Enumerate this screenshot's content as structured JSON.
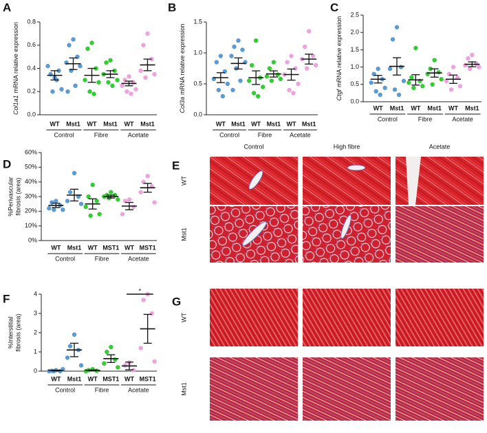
{
  "chart_data": [
    {
      "type": "dot",
      "panel": "A",
      "ylabel_gene": "Col1a1",
      "ylabel": "mRNA relative expression",
      "categories": [
        "WT",
        "Mst1",
        "WT",
        "Mst1",
        "WT",
        "Mst1"
      ],
      "groups": [
        "Control",
        "Fibre",
        "Acetate"
      ],
      "colors": [
        "#5b9bd5",
        "#5b9bd5",
        "#33cc33",
        "#33cc33",
        "#eea3de",
        "#eea3de"
      ],
      "points": [
        [
          0.32,
          0.35,
          0.38,
          0.42,
          0.22,
          0.2,
          0.3
        ],
        [
          0.65,
          0.6,
          0.5,
          0.45,
          0.42,
          0.38,
          0.25,
          0.2
        ],
        [
          0.62,
          0.57,
          0.4,
          0.3,
          0.28,
          0.2,
          0.18
        ],
        [
          0.47,
          0.45,
          0.38,
          0.35,
          0.3,
          0.28,
          0.25
        ],
        [
          0.33,
          0.3,
          0.28,
          0.25,
          0.22,
          0.2,
          0.18
        ],
        [
          0.7,
          0.6,
          0.48,
          0.38,
          0.35,
          0.32
        ]
      ],
      "means": [
        0.34,
        0.44,
        0.34,
        0.35,
        0.27,
        0.43
      ],
      "sems": [
        0.04,
        0.05,
        0.06,
        0.03,
        0.02,
        0.05
      ],
      "ylim": [
        0,
        0.8
      ],
      "yticks": [
        {
          "value": 0,
          "label": "0.0"
        },
        {
          "value": 0.2,
          "label": "0.2"
        },
        {
          "value": 0.4,
          "label": "0.4"
        },
        {
          "value": 0.6,
          "label": "0.6"
        },
        {
          "value": 0.8,
          "label": "0.8"
        }
      ]
    },
    {
      "type": "dot",
      "panel": "B",
      "ylabel_gene": "Col3a",
      "ylabel": "mRNA relative expression",
      "categories": [
        "WT",
        "Mst1",
        "WT",
        "Mst1",
        "WT",
        "Mst1"
      ],
      "groups": [
        "Control",
        "Fibre",
        "Acetate"
      ],
      "colors": [
        "#5b9bd5",
        "#5b9bd5",
        "#33cc33",
        "#33cc33",
        "#eea3de",
        "#eea3de"
      ],
      "points": [
        [
          0.95,
          0.85,
          0.7,
          0.58,
          0.5,
          0.4,
          0.3
        ],
        [
          1.2,
          1.1,
          1.05,
          0.95,
          0.85,
          0.75,
          0.55,
          0.4
        ],
        [
          1.2,
          0.8,
          0.6,
          0.55,
          0.45,
          0.35,
          0.3
        ],
        [
          0.85,
          0.75,
          0.65,
          0.62,
          0.58,
          0.55
        ],
        [
          0.95,
          0.85,
          0.75,
          0.65,
          0.5,
          0.4,
          0.35
        ],
        [
          1.35,
          1.1,
          0.95,
          0.9,
          0.8,
          0.75
        ]
      ],
      "means": [
        0.6,
        0.83,
        0.6,
        0.66,
        0.65,
        0.9
      ],
      "sems": [
        0.08,
        0.09,
        0.11,
        0.05,
        0.09,
        0.08
      ],
      "ylim": [
        0,
        1.5
      ],
      "yticks": [
        {
          "value": 0,
          "label": "0.0"
        },
        {
          "value": 0.5,
          "label": "0.5"
        },
        {
          "value": 1,
          "label": "1.0"
        },
        {
          "value": 1.5,
          "label": "1.5"
        }
      ]
    },
    {
      "type": "dot",
      "panel": "C",
      "ylabel_gene": "Ctgf",
      "ylabel": "mRNA relative expression",
      "categories": [
        "WT",
        "Mst1",
        "WT",
        "Mst1",
        "WT",
        "Mst1"
      ],
      "groups": [
        "Control",
        "Fibre",
        "Acetate"
      ],
      "colors": [
        "#5b9bd5",
        "#5b9bd5",
        "#33cc33",
        "#33cc33",
        "#eea3de",
        "#eea3de"
      ],
      "points": [
        [
          0.95,
          0.8,
          0.65,
          0.55,
          0.4,
          0.3,
          0.2
        ],
        [
          2.15,
          1.8,
          1.0,
          0.95,
          0.6,
          0.35,
          0.2
        ],
        [
          1.55,
          0.7,
          0.6,
          0.55,
          0.45,
          0.4
        ],
        [
          1.2,
          0.95,
          0.85,
          0.8,
          0.65,
          0.5
        ],
        [
          1.0,
          0.8,
          0.7,
          0.6,
          0.45,
          0.35
        ],
        [
          1.35,
          1.25,
          1.1,
          1.05,
          1.0,
          0.95
        ]
      ],
      "means": [
        0.65,
        1.02,
        0.63,
        0.83,
        0.65,
        1.08
      ],
      "sems": [
        0.11,
        0.25,
        0.15,
        0.12,
        0.12,
        0.07
      ],
      "ylim": [
        0,
        2.5
      ],
      "yticks": [
        {
          "value": 0,
          "label": "0.0"
        },
        {
          "value": 0.5,
          "label": "0.5"
        },
        {
          "value": 1,
          "label": "1.0"
        },
        {
          "value": 1.5,
          "label": "1.5"
        },
        {
          "value": 2,
          "label": "2.0"
        },
        {
          "value": 2.5,
          "label": "2.5"
        }
      ]
    },
    {
      "type": "dot",
      "panel": "D",
      "ylabel_lines": [
        "%Perivascular",
        "fibrosis (area)"
      ],
      "categories": [
        "WT",
        "Mst1",
        "WT",
        "MST1",
        "WT",
        "MST1"
      ],
      "groups": [
        "Control",
        "Fibre",
        "Acetate"
      ],
      "colors": [
        "#5b9bd5",
        "#5b9bd5",
        "#33cc33",
        "#33cc33",
        "#eea3de",
        "#eea3de"
      ],
      "points": [
        [
          27,
          26,
          24,
          22,
          21,
          21
        ],
        [
          46,
          33,
          30,
          27,
          25
        ],
        [
          38,
          30,
          27,
          23,
          18,
          17
        ],
        [
          33,
          31,
          31,
          30,
          28,
          29
        ],
        [
          28,
          27,
          23,
          18
        ],
        [
          44,
          40,
          37,
          33,
          26
        ]
      ],
      "means": [
        24,
        31,
        25,
        30,
        23.5,
        36
      ],
      "sems": [
        1.5,
        4,
        3.5,
        1,
        2.5,
        3
      ],
      "ylim": [
        0,
        60
      ],
      "yticks": [
        {
          "value": 0,
          "label": "0%"
        },
        {
          "value": 10,
          "label": "10%"
        },
        {
          "value": 20,
          "label": "20%"
        },
        {
          "value": 30,
          "label": "30%"
        },
        {
          "value": 40,
          "label": "40%"
        },
        {
          "value": 50,
          "label": "50%"
        },
        {
          "value": 60,
          "label": "60%"
        }
      ]
    },
    {
      "type": "dot",
      "panel": "F",
      "ylabel_lines": [
        "%Interstitial",
        "fibrosis (area)"
      ],
      "categories": [
        "WT",
        "Mst1",
        "WT",
        "MST1",
        "WT",
        "MST1"
      ],
      "groups": [
        "Control",
        "Fibre",
        "Acetate"
      ],
      "colors": [
        "#5b9bd5",
        "#5b9bd5",
        "#33cc33",
        "#33cc33",
        "#eea3de",
        "#eea3de"
      ],
      "points": [
        [
          0.05,
          0.02,
          0,
          0,
          0.1,
          0
        ],
        [
          1.9,
          1.3,
          1.1,
          0.7,
          0.3
        ],
        [
          0.1,
          0.05,
          0.02,
          0
        ],
        [
          1.25,
          1.0,
          0.6,
          0.4,
          0.2
        ],
        [
          0.45,
          0.3,
          0.05
        ],
        [
          4.0,
          3.7,
          3.0,
          1.2,
          0.5
        ]
      ],
      "means": [
        0.03,
        1.1,
        0.04,
        0.65,
        0.27,
        2.2
      ],
      "sems": [
        0.02,
        0.35,
        0.02,
        0.2,
        0.2,
        0.75
      ],
      "ylim": [
        0,
        4
      ],
      "yticks": [
        0,
        1,
        2,
        3,
        4
      ],
      "significance": "*"
    }
  ],
  "histology": [
    {
      "panel": "E",
      "columns": [
        "Control",
        "High fibre",
        "Acetate"
      ],
      "rows": [
        "WT",
        "Mst1"
      ]
    },
    {
      "panel": "G",
      "rows": [
        "WT",
        "Mst1"
      ]
    }
  ]
}
